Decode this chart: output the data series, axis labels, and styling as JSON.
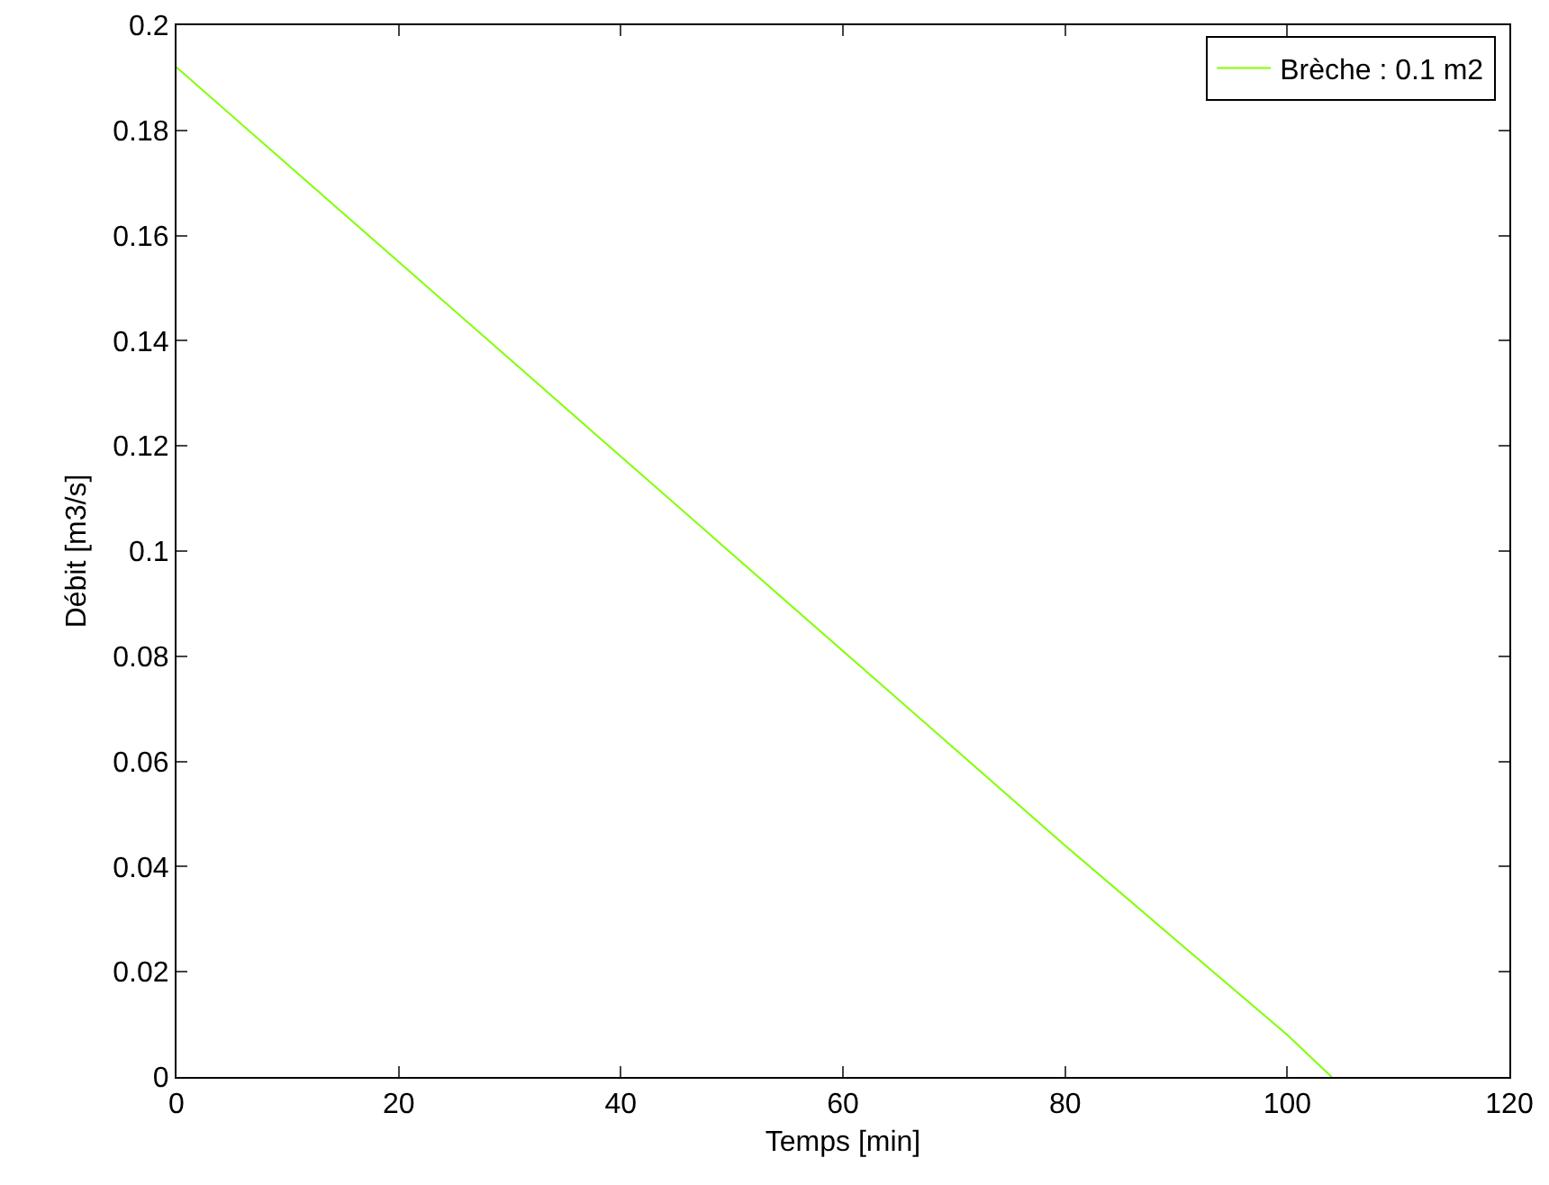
{
  "chart_data": {
    "type": "line",
    "xlabel": "Temps [min]",
    "ylabel": "Débit [m3/s]",
    "series": [
      {
        "name": "Brèche : 0.1 m2",
        "color": "#80ff00",
        "x": [
          0,
          10,
          20,
          30,
          40,
          50,
          60,
          70,
          80,
          90,
          100,
          104
        ],
        "values": [
          0.192,
          0.1735,
          0.155,
          0.1365,
          0.118,
          0.0995,
          0.081,
          0.0625,
          0.044,
          0.026,
          0.008,
          0
        ]
      }
    ],
    "xlim": [
      0,
      120
    ],
    "xticks": [
      0,
      20,
      40,
      60,
      80,
      100,
      120
    ],
    "ylim": [
      0,
      0.2
    ],
    "yticks": [
      0,
      0.02,
      0.04,
      0.06,
      0.08,
      0.1,
      0.12,
      0.14,
      0.16,
      0.18,
      0.2
    ],
    "grid": false,
    "legend": "top right",
    "marker": "none",
    "line_style": "solid"
  }
}
